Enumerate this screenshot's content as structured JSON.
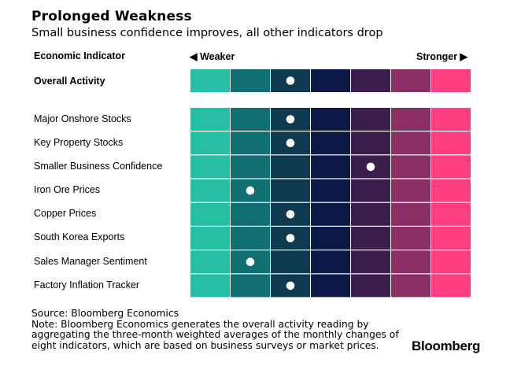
{
  "title": "Prolonged Weakness",
  "subtitle": "Small business confidence improves, all other indicators drop",
  "header": {
    "label": "Economic Indicator",
    "weaker": "◀ Weaker",
    "stronger": "Stronger ▶"
  },
  "chart_data": {
    "type": "heatmap",
    "scale_levels": 7,
    "scale_colors": [
      "#26bfa3",
      "#0f6f73",
      "#0d3a4f",
      "#0c1846",
      "#3a1d4d",
      "#8a2e64",
      "#ff3e82"
    ],
    "marker_color": "#ffffff",
    "overall": {
      "name": "Overall Activity",
      "level": 3
    },
    "indicators": [
      {
        "name": "Major Onshore Stocks",
        "level": 3
      },
      {
        "name": "Key Property Stocks",
        "level": 3
      },
      {
        "name": "Smaller Business Confidence",
        "level": 5
      },
      {
        "name": "Iron Ore Prices",
        "level": 2
      },
      {
        "name": "Copper Prices",
        "level": 3
      },
      {
        "name": "South Korea Exports",
        "level": 3
      },
      {
        "name": "Sales Manager Sentiment",
        "level": 2
      },
      {
        "name": "Factory Inflation Tracker",
        "level": 3
      }
    ]
  },
  "footer": {
    "source": "Source: Bloomberg Economics",
    "note_lines": [
      "Note: Bloomberg Economics generates the overall activity reading by",
      "aggregating the three-month weighted averages of the monthly changes of",
      "eight indicators, which are based on business surveys or market prices."
    ]
  },
  "brand": "Bloomberg"
}
